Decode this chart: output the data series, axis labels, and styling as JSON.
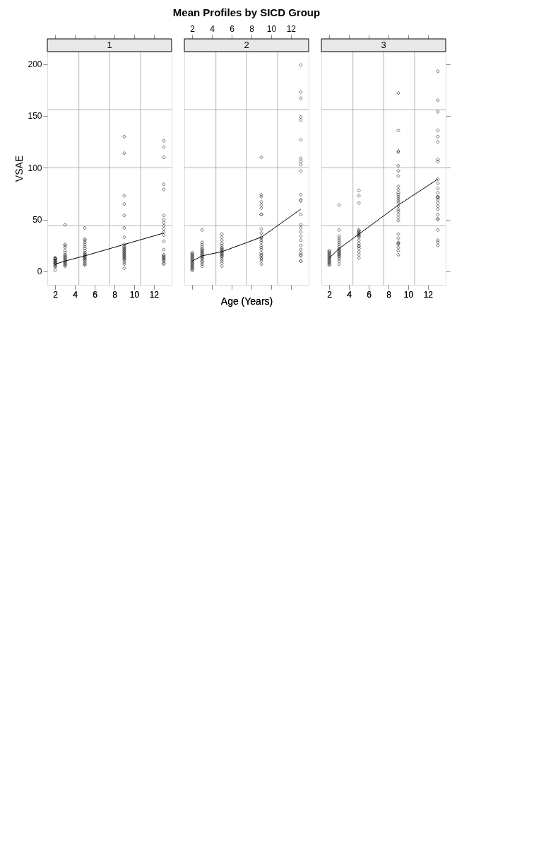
{
  "chart_data": [
    {
      "type": "scatter",
      "subtitle": "1",
      "marker": "diamond",
      "ylabel": "VSAE",
      "xlim": [
        1.2,
        13.8
      ],
      "ylim": [
        -13,
        212
      ],
      "xticks": [
        2,
        4,
        6,
        8,
        10,
        12
      ],
      "yticks": [
        0,
        50,
        100,
        150,
        200
      ],
      "grid": false,
      "ref_lines": [
        {
          "axis": "x",
          "value": 4.4,
          "color": "#b3b3b3"
        },
        {
          "axis": "x",
          "value": 7.5,
          "color": "#b3b3b3"
        },
        {
          "axis": "x",
          "value": 10.65,
          "color": "#b3b3b3"
        },
        {
          "axis": "y",
          "value": 44,
          "color": "#b3b3b3"
        },
        {
          "axis": "y",
          "value": 100,
          "color": "#b3b3b3"
        },
        {
          "axis": "y",
          "value": 156,
          "color": "#b3b3b3"
        }
      ],
      "series": [
        {
          "type": "scatter",
          "color": "#000000",
          "x": [
            2,
            2,
            2,
            2,
            2,
            2,
            2,
            2,
            2,
            2,
            2,
            2,
            2,
            2,
            2,
            3,
            3,
            3,
            3,
            3,
            3,
            3,
            3,
            3,
            3,
            3,
            3,
            3,
            3,
            3,
            3,
            3,
            3,
            5,
            5,
            5,
            5,
            5,
            5,
            5,
            5,
            5,
            5,
            5,
            5,
            5,
            5,
            5,
            5,
            5,
            5,
            5,
            5,
            9,
            9,
            9,
            9,
            9,
            9,
            9,
            9,
            9,
            9,
            9,
            9,
            9,
            9,
            9,
            9,
            9,
            9,
            9,
            9,
            9,
            9,
            9,
            9,
            9,
            13,
            13,
            13,
            13,
            13,
            13,
            13,
            13,
            13,
            13,
            13,
            13,
            13,
            13,
            13,
            13,
            13,
            13,
            13,
            13,
            13,
            13,
            13
          ],
          "values": [
            1,
            4,
            5,
            6,
            7,
            8,
            8,
            9,
            10,
            10,
            11,
            12,
            12,
            13,
            13,
            5,
            6,
            7,
            8,
            9,
            10,
            11,
            12,
            13,
            14,
            15,
            16,
            18,
            20,
            23,
            25,
            26,
            45,
            6,
            7,
            8,
            10,
            11,
            12,
            13,
            14,
            15,
            16,
            17,
            18,
            20,
            22,
            24,
            26,
            28,
            30,
            31,
            42,
            3,
            7,
            9,
            11,
            12,
            13,
            14,
            15,
            16,
            17,
            18,
            19,
            20,
            21,
            22,
            23,
            24,
            26,
            33,
            42,
            54,
            65,
            73,
            114,
            130,
            7,
            8,
            10,
            11,
            12,
            13,
            14,
            15,
            16,
            21,
            29,
            35,
            38,
            41,
            44,
            47,
            50,
            54,
            79,
            84,
            110,
            120,
            126
          ]
        },
        {
          "type": "line",
          "color": "#000000",
          "line_style": "solid",
          "marker": "none",
          "x": [
            2,
            3,
            5,
            9,
            13
          ],
          "values": [
            7,
            10,
            15,
            26,
            37
          ]
        }
      ]
    },
    {
      "type": "scatter",
      "title": "Mean Profiles by SICD Group",
      "subtitle": "2",
      "marker": "diamond",
      "xlabel": "Age (Years)",
      "xlim": [
        1.2,
        13.8
      ],
      "ylim": [
        -13,
        212
      ],
      "xticks": [
        2,
        4,
        6,
        8,
        10,
        12
      ],
      "yticks": [
        0,
        50,
        100,
        150,
        200
      ],
      "grid": false,
      "tick_labels": "x",
      "ref_lines": [
        {
          "axis": "x",
          "value": 4.4,
          "color": "#b3b3b3"
        },
        {
          "axis": "x",
          "value": 7.5,
          "color": "#b3b3b3"
        },
        {
          "axis": "x",
          "value": 10.65,
          "color": "#b3b3b3"
        },
        {
          "axis": "y",
          "value": 44,
          "color": "#b3b3b3"
        },
        {
          "axis": "y",
          "value": 100,
          "color": "#b3b3b3"
        },
        {
          "axis": "y",
          "value": 156,
          "color": "#b3b3b3"
        }
      ],
      "series": [
        {
          "type": "scatter",
          "color": "#000000",
          "x": [
            2,
            2,
            2,
            2,
            2,
            2,
            2,
            2,
            2,
            2,
            2,
            2,
            2,
            2,
            2,
            2,
            2,
            2,
            3,
            3,
            3,
            3,
            3,
            3,
            3,
            3,
            3,
            3,
            3,
            3,
            3,
            3,
            3,
            3,
            3,
            3,
            3,
            5,
            5,
            5,
            5,
            5,
            5,
            5,
            5,
            5,
            5,
            5,
            5,
            5,
            5,
            5,
            5,
            5,
            5,
            5,
            9,
            9,
            9,
            9,
            9,
            9,
            9,
            9,
            9,
            9,
            9,
            9,
            9,
            9,
            9,
            9,
            9,
            9,
            9,
            9,
            9,
            9,
            9,
            9,
            13,
            13,
            13,
            13,
            13,
            13,
            13,
            13,
            13,
            13,
            13,
            13,
            13,
            13,
            13,
            13,
            13,
            13,
            13,
            13,
            13,
            13,
            13,
            13,
            13,
            13
          ],
          "values": [
            1,
            2,
            3,
            4,
            5,
            6,
            7,
            8,
            9,
            10,
            11,
            12,
            13,
            14,
            15,
            16,
            17,
            18,
            5,
            7,
            9,
            10,
            12,
            13,
            14,
            15,
            16,
            17,
            18,
            19,
            20,
            21,
            22,
            24,
            26,
            28,
            40,
            5,
            8,
            10,
            12,
            14,
            15,
            16,
            17,
            18,
            19,
            20,
            21,
            22,
            23,
            25,
            27,
            30,
            33,
            36,
            7,
            10,
            12,
            13,
            15,
            16,
            18,
            21,
            23,
            25,
            28,
            30,
            32,
            33,
            37,
            41,
            55,
            55,
            61,
            64,
            67,
            72,
            74,
            110,
            10,
            10,
            15,
            16,
            18,
            21,
            25,
            30,
            34,
            38,
            42,
            45,
            55,
            68,
            69,
            74,
            97,
            103,
            106,
            109,
            127,
            146,
            149,
            167,
            173,
            199
          ]
        },
        {
          "type": "line",
          "color": "#000000",
          "line_style": "solid",
          "marker": "none",
          "x": [
            2,
            3,
            5,
            9,
            13
          ],
          "values": [
            10,
            15,
            19,
            33,
            60
          ]
        }
      ]
    },
    {
      "type": "scatter",
      "subtitle": "3",
      "marker": "diamond",
      "xlim": [
        1.2,
        13.8
      ],
      "ylim": [
        -13,
        212
      ],
      "xticks": [
        2,
        4,
        6,
        8,
        10,
        12
      ],
      "yticks": [
        0,
        50,
        100,
        150,
        200
      ],
      "grid": false,
      "tick_labels": "x",
      "ref_lines": [
        {
          "axis": "x",
          "value": 4.4,
          "color": "#b3b3b3"
        },
        {
          "axis": "x",
          "value": 7.5,
          "color": "#b3b3b3"
        },
        {
          "axis": "x",
          "value": 10.65,
          "color": "#b3b3b3"
        },
        {
          "axis": "y",
          "value": 44,
          "color": "#b3b3b3"
        },
        {
          "axis": "y",
          "value": 100,
          "color": "#b3b3b3"
        },
        {
          "axis": "y",
          "value": 156,
          "color": "#b3b3b3"
        }
      ],
      "series": [
        {
          "type": "scatter",
          "color": "#000000",
          "x": [
            2,
            2,
            2,
            2,
            2,
            2,
            2,
            2,
            2,
            2,
            2,
            2,
            2,
            2,
            2,
            3,
            3,
            3,
            3,
            3,
            3,
            3,
            3,
            3,
            3,
            3,
            3,
            3,
            3,
            3,
            3,
            3,
            3,
            3,
            3,
            5,
            5,
            5,
            5,
            5,
            5,
            5,
            5,
            5,
            5,
            5,
            5,
            5,
            5,
            5,
            5,
            5,
            5,
            5,
            9,
            9,
            9,
            9,
            9,
            9,
            9,
            9,
            9,
            9,
            9,
            9,
            9,
            9,
            9,
            9,
            9,
            9,
            9,
            9,
            9,
            9,
            9,
            9,
            9,
            9,
            9,
            9,
            9,
            13,
            13,
            13,
            13,
            13,
            13,
            13,
            13,
            13,
            13,
            13,
            13,
            13,
            13,
            13,
            13,
            13,
            13,
            13,
            13,
            13,
            13,
            13,
            13,
            13,
            13
          ],
          "values": [
            6,
            7,
            8,
            9,
            10,
            11,
            12,
            13,
            14,
            15,
            16,
            17,
            18,
            19,
            20,
            7,
            10,
            12,
            14,
            15,
            16,
            17,
            18,
            19,
            20,
            21,
            22,
            24,
            26,
            28,
            30,
            32,
            34,
            40,
            64,
            13,
            16,
            19,
            22,
            24,
            25,
            27,
            30,
            33,
            34,
            35,
            36,
            37,
            38,
            39,
            40,
            66,
            73,
            78,
            16,
            20,
            23,
            26,
            27,
            28,
            32,
            36,
            49,
            52,
            55,
            58,
            60,
            63,
            66,
            68,
            70,
            72,
            74,
            76,
            79,
            82,
            92,
            97,
            102,
            115,
            116,
            136,
            172,
            25,
            28,
            30,
            40,
            50,
            51,
            55,
            60,
            63,
            66,
            69,
            71,
            72,
            72,
            76,
            80,
            85,
            89,
            106,
            108,
            125,
            130,
            136,
            154,
            165,
            193
          ]
        },
        {
          "type": "line",
          "color": "#000000",
          "line_style": "solid",
          "marker": "none",
          "x": [
            2,
            3,
            5,
            9,
            13
          ],
          "values": [
            13,
            22,
            36,
            64,
            89
          ]
        }
      ]
    }
  ]
}
